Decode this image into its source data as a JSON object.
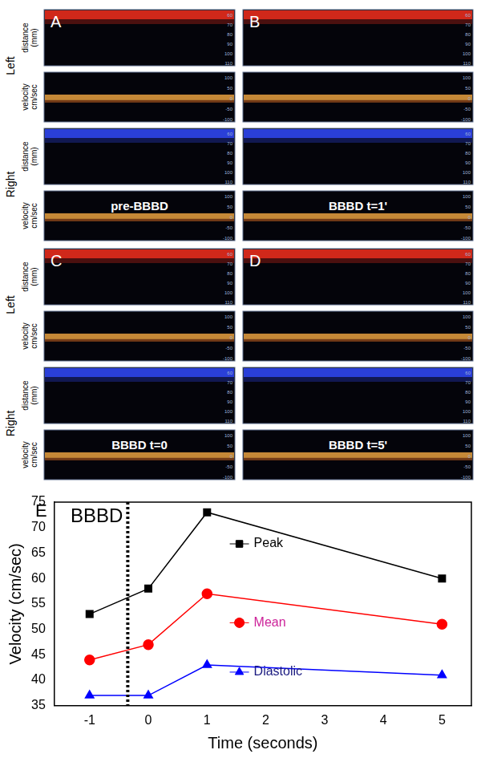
{
  "panels": {
    "rows": [
      "Left",
      "Right"
    ],
    "strips": [
      {
        "label": "distance (mm)",
        "ticks": [
          60,
          70,
          80,
          90,
          100,
          110
        ]
      },
      {
        "label": "velocity cm/sec",
        "ticks": [
          100,
          50,
          0,
          -50,
          -100
        ]
      }
    ],
    "items": [
      {
        "label": "A",
        "caption": "pre-BBBD"
      },
      {
        "label": "B",
        "caption": "BBBD t=1'"
      },
      {
        "label": "C",
        "caption": "BBBD t=0"
      },
      {
        "label": "D",
        "caption": "BBBD t=5'"
      }
    ]
  },
  "chart_data": {
    "type": "line",
    "title": "E",
    "x_label": "Time (seconds)",
    "y_label": "Velocity (cm/sec)",
    "x": [
      -1,
      0,
      1,
      5
    ],
    "series": [
      {
        "name": "Peak",
        "color": "#000000",
        "marker": "square",
        "values": [
          53,
          58,
          73,
          60
        ]
      },
      {
        "name": "Mean",
        "color": "#ff0000",
        "marker": "circle",
        "values": [
          44,
          47,
          57,
          51
        ]
      },
      {
        "name": "Diastolic",
        "color": "#0000ff",
        "marker": "triangle",
        "values": [
          37,
          37,
          43,
          41
        ]
      }
    ],
    "xlim": [
      -1.6,
      5.5
    ],
    "xticks": [
      -1,
      0,
      1,
      2,
      3,
      4,
      5
    ],
    "ylim": [
      35,
      75
    ],
    "yticks": [
      35,
      40,
      45,
      50,
      55,
      60,
      65,
      70,
      75
    ],
    "grid": false,
    "annotations": [
      {
        "text": "BBBD",
        "x": -0.35,
        "line_style": "dotted"
      }
    ]
  }
}
